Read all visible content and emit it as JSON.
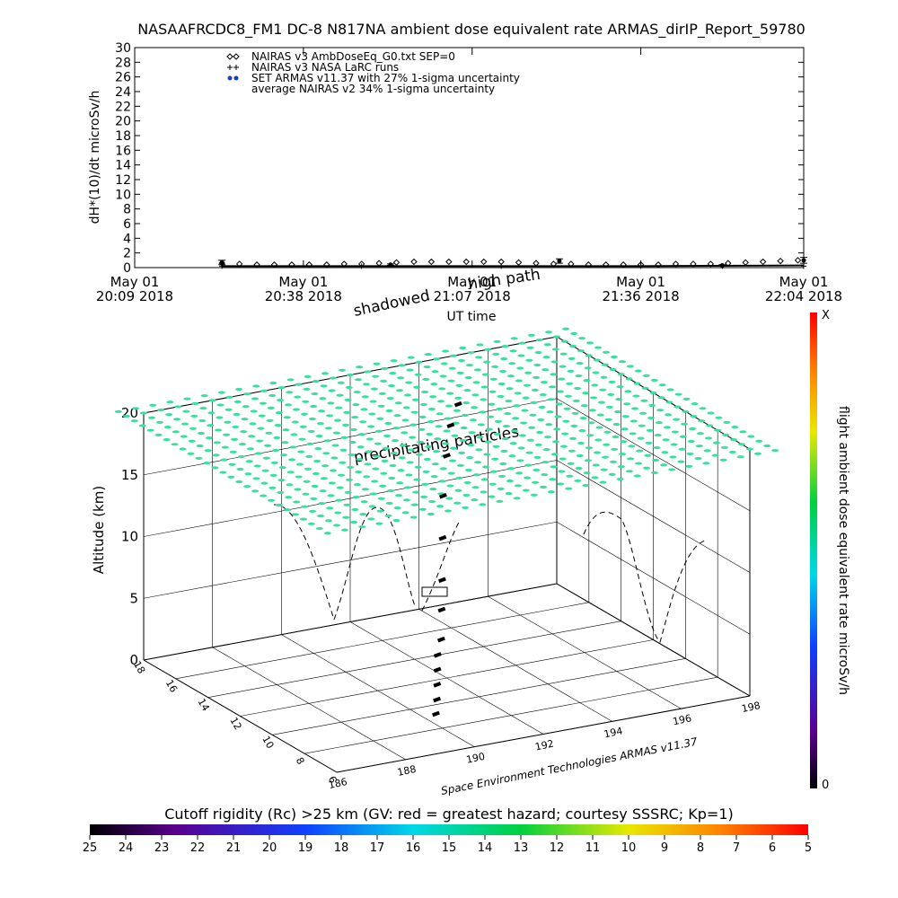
{
  "chart_data": [
    {
      "type": "line",
      "title": "NASAAFRCDC8_FM1 DC-8   N817NA ambient dose equivalent rate ARMAS_dirIP_Report_59780",
      "ylabel": "dH*(10)/dt microSv/h",
      "xlabel": "UT time",
      "xlim": [
        "2018-05-01T20:09",
        "2018-05-01T22:04"
      ],
      "xticks": [
        {
          "value": "2018-05-01T20:09",
          "label": "May 01\n20:09 2018"
        },
        {
          "value": "2018-05-01T20:38",
          "label": "May 01\n20:38 2018"
        },
        {
          "value": "2018-05-01T21:07",
          "label": "May 01\n21:07 2018"
        },
        {
          "value": "2018-05-01T21:36",
          "label": "May 01\n21:36 2018"
        },
        {
          "value": "2018-05-01T22:04",
          "label": "May 01\n22:04 2018"
        }
      ],
      "ylim": [
        0,
        30
      ],
      "yticks": [
        0,
        2,
        4,
        6,
        8,
        10,
        12,
        14,
        16,
        18,
        20,
        22,
        24,
        26,
        28,
        30
      ],
      "series": [
        {
          "name": "NAIRAS v3 AmbDoseEq_G0.txt SEP=0",
          "marker": "diamond",
          "color": "#000000",
          "x": [
            "2018-05-01T20:24",
            "2018-05-01T20:27",
            "2018-05-01T20:30",
            "2018-05-01T20:33",
            "2018-05-01T20:36",
            "2018-05-01T20:39",
            "2018-05-01T20:42",
            "2018-05-01T20:45",
            "2018-05-01T20:48",
            "2018-05-01T20:51",
            "2018-05-01T20:54",
            "2018-05-01T20:57",
            "2018-05-01T21:00",
            "2018-05-01T21:03",
            "2018-05-01T21:06",
            "2018-05-01T21:09",
            "2018-05-01T21:12",
            "2018-05-01T21:15",
            "2018-05-01T21:18",
            "2018-05-01T21:21",
            "2018-05-01T21:24",
            "2018-05-01T21:27",
            "2018-05-01T21:30",
            "2018-05-01T21:33",
            "2018-05-01T21:36",
            "2018-05-01T21:39",
            "2018-05-01T21:42",
            "2018-05-01T21:45",
            "2018-05-01T21:48",
            "2018-05-01T21:51",
            "2018-05-01T21:54",
            "2018-05-01T21:57",
            "2018-05-01T22:00",
            "2018-05-01T22:03"
          ],
          "values": [
            0.6,
            0.5,
            0.4,
            0.4,
            0.4,
            0.4,
            0.4,
            0.5,
            0.5,
            0.6,
            0.7,
            0.8,
            0.8,
            0.8,
            0.8,
            0.8,
            0.8,
            0.7,
            0.6,
            0.5,
            0.5,
            0.4,
            0.4,
            0.4,
            0.4,
            0.4,
            0.5,
            0.5,
            0.5,
            0.6,
            0.7,
            0.8,
            0.9,
            1.0
          ]
        },
        {
          "name": "NAIRAS v3 NASA LaRC runs",
          "marker": "plus",
          "color": "#000000",
          "x": [
            "2018-05-01T20:24",
            "2018-05-01T20:48",
            "2018-05-01T21:12",
            "2018-05-01T21:36",
            "2018-05-01T21:50",
            "2018-05-01T22:04"
          ],
          "values": [
            0.2,
            0.2,
            0.2,
            0.2,
            0.2,
            0.2
          ]
        },
        {
          "name": "SET ARMAS v11.37 with 27% 1-sigma uncertainty",
          "marker": "dot",
          "color": "#1a3cc8",
          "x": [
            "2018-05-01T20:24",
            "2018-05-01T20:53",
            "2018-05-01T21:22",
            "2018-05-01T21:50",
            "2018-05-01T22:04"
          ],
          "values": [
            0.7,
            0.4,
            0.9,
            0.3,
            1.0
          ],
          "errors": [
            0.3,
            0.1,
            0.3,
            0.1,
            0.4
          ]
        },
        {
          "name": "average NAIRAS v2 34% 1-sigma uncertainty",
          "marker": "line",
          "color": "#000000",
          "x": [
            "2018-05-01T20:24",
            "2018-05-01T21:07",
            "2018-05-01T21:36",
            "2018-05-01T22:04"
          ],
          "values": [
            0.2,
            0.2,
            0.2,
            0.3
          ]
        }
      ]
    },
    {
      "type": "scatter3d",
      "zlabel": "Altitude (km)",
      "annotations": [
        "shadowed",
        "high path",
        "precipitating particles"
      ],
      "credit": "Space Environment Technologies ARMAS v11.37",
      "xlim": [
        186,
        198
      ],
      "xticks": [
        186,
        188,
        190,
        192,
        194,
        196,
        198
      ],
      "ylim": [
        6,
        18
      ],
      "yticks": [
        6,
        8,
        10,
        12,
        14,
        16,
        18
      ],
      "zlim": [
        0,
        20
      ],
      "zticks": [
        0,
        5,
        10,
        15,
        20
      ],
      "track": {
        "color": "#000000",
        "x": [
          190.4,
          190.5,
          190.6,
          190.7,
          190.8,
          191,
          191.2,
          191.4,
          191.6,
          191.8,
          192,
          192.3,
          192.8
        ],
        "y": [
          9.25,
          9.4,
          9.6,
          9.8,
          10,
          10.2,
          10.6,
          11,
          11.4,
          11.8,
          12,
          12.4,
          13
        ],
        "z": [
          0,
          1,
          2,
          3,
          4,
          5,
          7,
          9,
          12,
          15,
          18,
          20,
          21
        ]
      },
      "dose_colorbar": {
        "label": "flight ambient dose equivalent rate microSv/h",
        "max_label": "X",
        "min": 0
      },
      "rigidity_colorbar": {
        "title": "Cutoff rigidity (Rc) >25 km (GV: red = greatest hazard; courtesy SSSRC; Kp=1)",
        "lim": [
          25,
          5
        ],
        "ticks": [
          25,
          24,
          23,
          22,
          21,
          20,
          19,
          18,
          17,
          16,
          15,
          14,
          13,
          12,
          11,
          10,
          9,
          8,
          7,
          6,
          5
        ]
      }
    }
  ]
}
